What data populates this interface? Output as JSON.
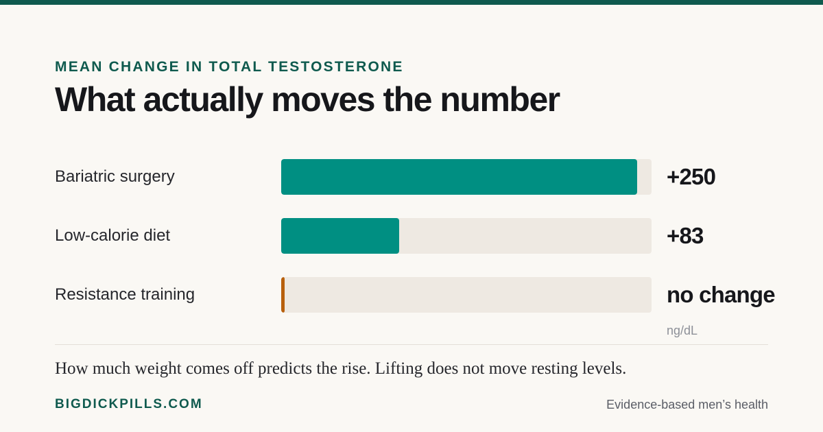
{
  "header": {
    "eyebrow": "MEAN CHANGE IN TOTAL TESTOSTERONE",
    "title": "What actually moves the number"
  },
  "chart_data": {
    "type": "bar",
    "orientation": "horizontal",
    "categories": [
      "Bariatric surgery",
      "Low-calorie diet",
      "Resistance training"
    ],
    "values": [
      250,
      83,
      0
    ],
    "value_labels": [
      "+250",
      "+83",
      "no change"
    ],
    "unit": "ng/dL",
    "xlim": [
      0,
      260
    ],
    "bar_colors": [
      "#008f82",
      "#008f82",
      "#b8600d"
    ],
    "track_color": "#eee9e2"
  },
  "footer": {
    "caption": "How much weight comes off predicts the rise. Lifting does not move resting levels.",
    "brand": "BIGDICKPILLS.COM",
    "tagline": "Evidence-based men’s health"
  },
  "colors": {
    "accent": "#0f5a4e",
    "background": "#faf8f4",
    "text": "#16171b"
  }
}
